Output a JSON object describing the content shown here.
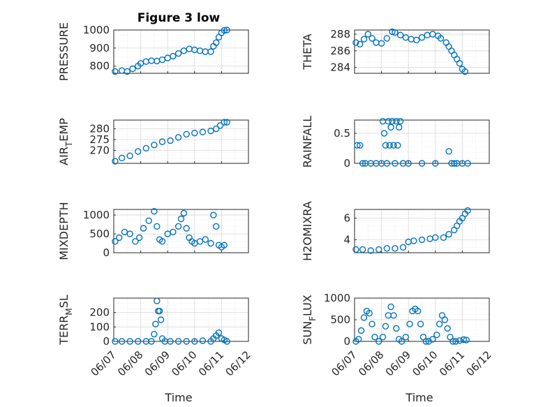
{
  "figure": {
    "title": "Figure 3 low",
    "marker_color": "#0072BD",
    "x_ticks": [
      "06/07",
      "06/08",
      "06/09",
      "06/10",
      "06/11",
      "06/12"
    ],
    "xlabel": "Time"
  },
  "chart_data": [
    {
      "type": "scatter",
      "ylabel": "PRESSURE",
      "ylim": [
        760,
        1000
      ],
      "yticks": [
        800,
        900,
        1000
      ],
      "xlim": [
        0,
        5
      ],
      "grid": true,
      "x": [
        0.05,
        0.3,
        0.5,
        0.7,
        0.9,
        1.0,
        1.2,
        1.4,
        1.6,
        1.8,
        2.0,
        2.2,
        2.4,
        2.6,
        2.8,
        3.0,
        3.2,
        3.4,
        3.6,
        3.7,
        3.8,
        3.9,
        4.0,
        4.1,
        4.2
      ],
      "y": [
        770,
        775,
        770,
        785,
        800,
        815,
        825,
        830,
        828,
        835,
        845,
        855,
        870,
        885,
        895,
        890,
        885,
        880,
        880,
        910,
        930,
        960,
        985,
        998,
        1000
      ]
    },
    {
      "type": "scatter",
      "ylabel": "THETA",
      "ylim": [
        283.3,
        288.5
      ],
      "yticks": [
        284,
        286,
        288
      ],
      "xlim": [
        0,
        5
      ],
      "grid": true,
      "x": [
        0.05,
        0.2,
        0.35,
        0.5,
        0.65,
        0.8,
        1.0,
        1.2,
        1.4,
        1.5,
        1.7,
        1.9,
        2.1,
        2.3,
        2.5,
        2.7,
        2.9,
        3.1,
        3.2,
        3.4,
        3.5,
        3.6,
        3.7,
        3.8,
        3.9,
        4.0,
        4.1
      ],
      "y": [
        287.0,
        286.8,
        287.4,
        288.0,
        287.5,
        287.0,
        286.9,
        287.5,
        288.3,
        288.2,
        287.9,
        287.6,
        287.4,
        287.3,
        287.6,
        287.9,
        288.0,
        287.8,
        287.5,
        287.0,
        286.5,
        286.0,
        285.5,
        285.0,
        284.5,
        283.8,
        283.5
      ]
    },
    {
      "type": "scatter",
      "ylabel": "AIR",
      "ylabel_sub": "T",
      "ylabel_tail": "EMP",
      "ylim": [
        264,
        284
      ],
      "yticks": [
        270,
        275,
        280
      ],
      "xlim": [
        0,
        5
      ],
      "grid": true,
      "x": [
        0.05,
        0.3,
        0.6,
        0.9,
        1.2,
        1.5,
        1.8,
        2.1,
        2.4,
        2.7,
        3.0,
        3.3,
        3.6,
        3.8,
        3.95,
        4.1,
        4.2
      ],
      "y": [
        265,
        266.5,
        267.5,
        269.5,
        271,
        272.5,
        274,
        274.5,
        276,
        277.5,
        278,
        278.5,
        279,
        280,
        281.5,
        283,
        283
      ]
    },
    {
      "type": "scatter",
      "ylabel": "RAINFALL",
      "ylim": [
        0,
        0.72
      ],
      "yticks": [
        0,
        0.5
      ],
      "xlim": [
        0,
        5
      ],
      "grid": true,
      "x": [
        0.1,
        0.2,
        0.3,
        0.4,
        0.6,
        0.8,
        1.0,
        1.05,
        1.1,
        1.15,
        1.2,
        1.25,
        1.3,
        1.35,
        1.4,
        1.45,
        1.5,
        1.55,
        1.6,
        1.65,
        1.7,
        1.8,
        2.0,
        2.5,
        3.0,
        3.5,
        3.6,
        3.7,
        3.8,
        4.0,
        4.2
      ],
      "y": [
        0.3,
        0.3,
        0,
        0,
        0,
        0,
        0,
        0.7,
        0.5,
        0.3,
        0,
        0.7,
        0.3,
        0.6,
        0.7,
        0.3,
        0,
        0.7,
        0.3,
        0.6,
        0.7,
        0,
        0,
        0,
        0,
        0.2,
        0,
        0,
        0,
        0,
        0
      ]
    },
    {
      "type": "scatter",
      "ylabel": "MIXDEPTH",
      "ylim": [
        0,
        1150
      ],
      "yticks": [
        0,
        500,
        1000
      ],
      "xlim": [
        0,
        5
      ],
      "grid": true,
      "x": [
        0.05,
        0.2,
        0.4,
        0.6,
        0.8,
        0.95,
        1.1,
        1.3,
        1.5,
        1.6,
        1.7,
        1.8,
        2.0,
        2.2,
        2.4,
        2.5,
        2.6,
        2.7,
        2.8,
        2.9,
        3.0,
        3.2,
        3.4,
        3.6,
        3.7,
        3.8,
        3.9,
        4.0,
        4.1
      ],
      "y": [
        300,
        400,
        550,
        500,
        300,
        400,
        650,
        850,
        1100,
        700,
        350,
        300,
        500,
        550,
        700,
        900,
        1050,
        650,
        400,
        300,
        250,
        300,
        350,
        250,
        1000,
        700,
        200,
        150,
        200
      ]
    },
    {
      "type": "scatter",
      "ylabel": "H2OMIXRA",
      "ylim": [
        2.8,
        6.8
      ],
      "yticks": [
        4,
        6
      ],
      "xlim": [
        0,
        5
      ],
      "grid": true,
      "x": [
        0.05,
        0.3,
        0.6,
        0.9,
        1.2,
        1.5,
        1.8,
        2.0,
        2.2,
        2.5,
        2.8,
        3.0,
        3.3,
        3.5,
        3.7,
        3.8,
        3.9,
        4.0,
        4.1,
        4.2
      ],
      "y": [
        3.1,
        3.1,
        3.0,
        3.1,
        3.2,
        3.2,
        3.3,
        3.8,
        3.9,
        4.0,
        4.1,
        4.2,
        4.2,
        4.5,
        4.9,
        5.3,
        5.7,
        6.0,
        6.4,
        6.7
      ]
    },
    {
      "type": "scatter",
      "ylabel": "TERR",
      "ylabel_sub": "M",
      "ylabel_tail": "SL",
      "ylim": [
        0,
        300
      ],
      "yticks": [
        0,
        100,
        200
      ],
      "xlim": [
        0,
        5
      ],
      "grid": true,
      "x": [
        0.05,
        0.3,
        0.6,
        0.9,
        1.2,
        1.4,
        1.5,
        1.55,
        1.6,
        1.65,
        1.7,
        1.75,
        1.8,
        1.9,
        2.1,
        2.4,
        2.7,
        3.0,
        3.3,
        3.6,
        3.7,
        3.8,
        3.9,
        4.0,
        4.1,
        4.2
      ],
      "y": [
        0,
        0,
        0,
        0,
        0,
        0,
        50,
        120,
        280,
        210,
        210,
        150,
        20,
        0,
        0,
        0,
        0,
        0,
        5,
        0,
        20,
        40,
        60,
        20,
        10,
        0
      ]
    },
    {
      "type": "scatter",
      "ylabel": "SUN",
      "ylabel_sub": "F",
      "ylabel_tail": "LUX",
      "ylim": [
        0,
        1000
      ],
      "yticks": [
        0,
        500,
        1000
      ],
      "xlim": [
        0,
        5
      ],
      "grid": true,
      "x": [
        0.05,
        0.15,
        0.25,
        0.35,
        0.45,
        0.55,
        0.65,
        0.75,
        0.9,
        1.05,
        1.15,
        1.25,
        1.35,
        1.45,
        1.55,
        1.65,
        1.75,
        1.9,
        2.05,
        2.15,
        2.25,
        2.35,
        2.45,
        2.55,
        2.65,
        2.75,
        2.9,
        3.05,
        3.15,
        3.25,
        3.35,
        3.45,
        3.55,
        3.65,
        3.75,
        3.9,
        4.05,
        4.15
      ],
      "y": [
        0,
        50,
        250,
        550,
        700,
        650,
        400,
        100,
        0,
        100,
        350,
        600,
        800,
        600,
        300,
        50,
        0,
        100,
        400,
        700,
        750,
        700,
        400,
        100,
        0,
        0,
        50,
        150,
        400,
        600,
        500,
        300,
        100,
        0,
        0,
        20,
        40,
        30
      ]
    }
  ]
}
